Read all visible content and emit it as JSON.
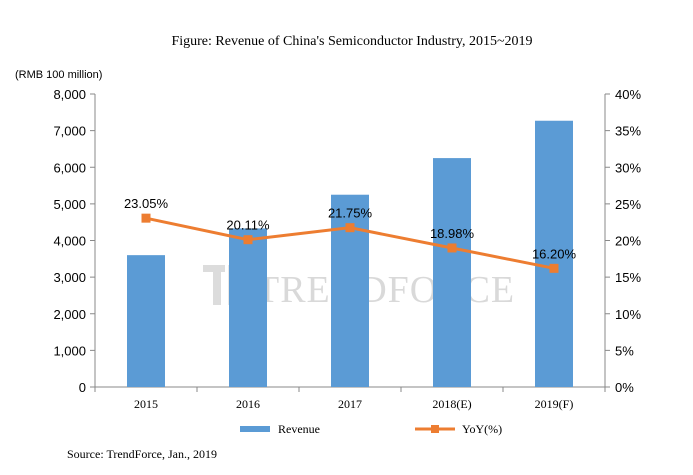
{
  "chart_data": {
    "type": "bar+line",
    "title": "Figure: Revenue of China's Semiconductor Industry, 2015~2019",
    "ylabel_left": "(RMB 100 million)",
    "categories": [
      "2015",
      "2016",
      "2017",
      "2018(E)",
      "2019(F)"
    ],
    "left_axis": {
      "range": [
        0,
        8000
      ],
      "ticks": [
        "0",
        "1,000",
        "2,000",
        "3,000",
        "4,000",
        "5,000",
        "6,000",
        "7,000",
        "8,000"
      ]
    },
    "right_axis": {
      "range": [
        0,
        40
      ],
      "ticks": [
        "0%",
        "5%",
        "10%",
        "15%",
        "20%",
        "25%",
        "30%",
        "35%",
        "40%"
      ]
    },
    "series": [
      {
        "name": "Revenue",
        "type": "bar",
        "axis": "left",
        "color": "#5B9BD5",
        "values": [
          3600,
          4330,
          5250,
          6250,
          7270
        ]
      },
      {
        "name": "YoY(%)",
        "type": "line",
        "axis": "right",
        "color": "#ED7D31",
        "values": [
          23.05,
          20.11,
          21.75,
          18.98,
          16.2
        ],
        "labels": [
          "23.05%",
          "20.11%",
          "21.75%",
          "18.98%",
          "16.20%"
        ]
      }
    ],
    "legend_position": "bottom",
    "grid": false,
    "source": "Source: TrendForce, Jan., 2019",
    "watermark": "TRENDFORCE"
  }
}
